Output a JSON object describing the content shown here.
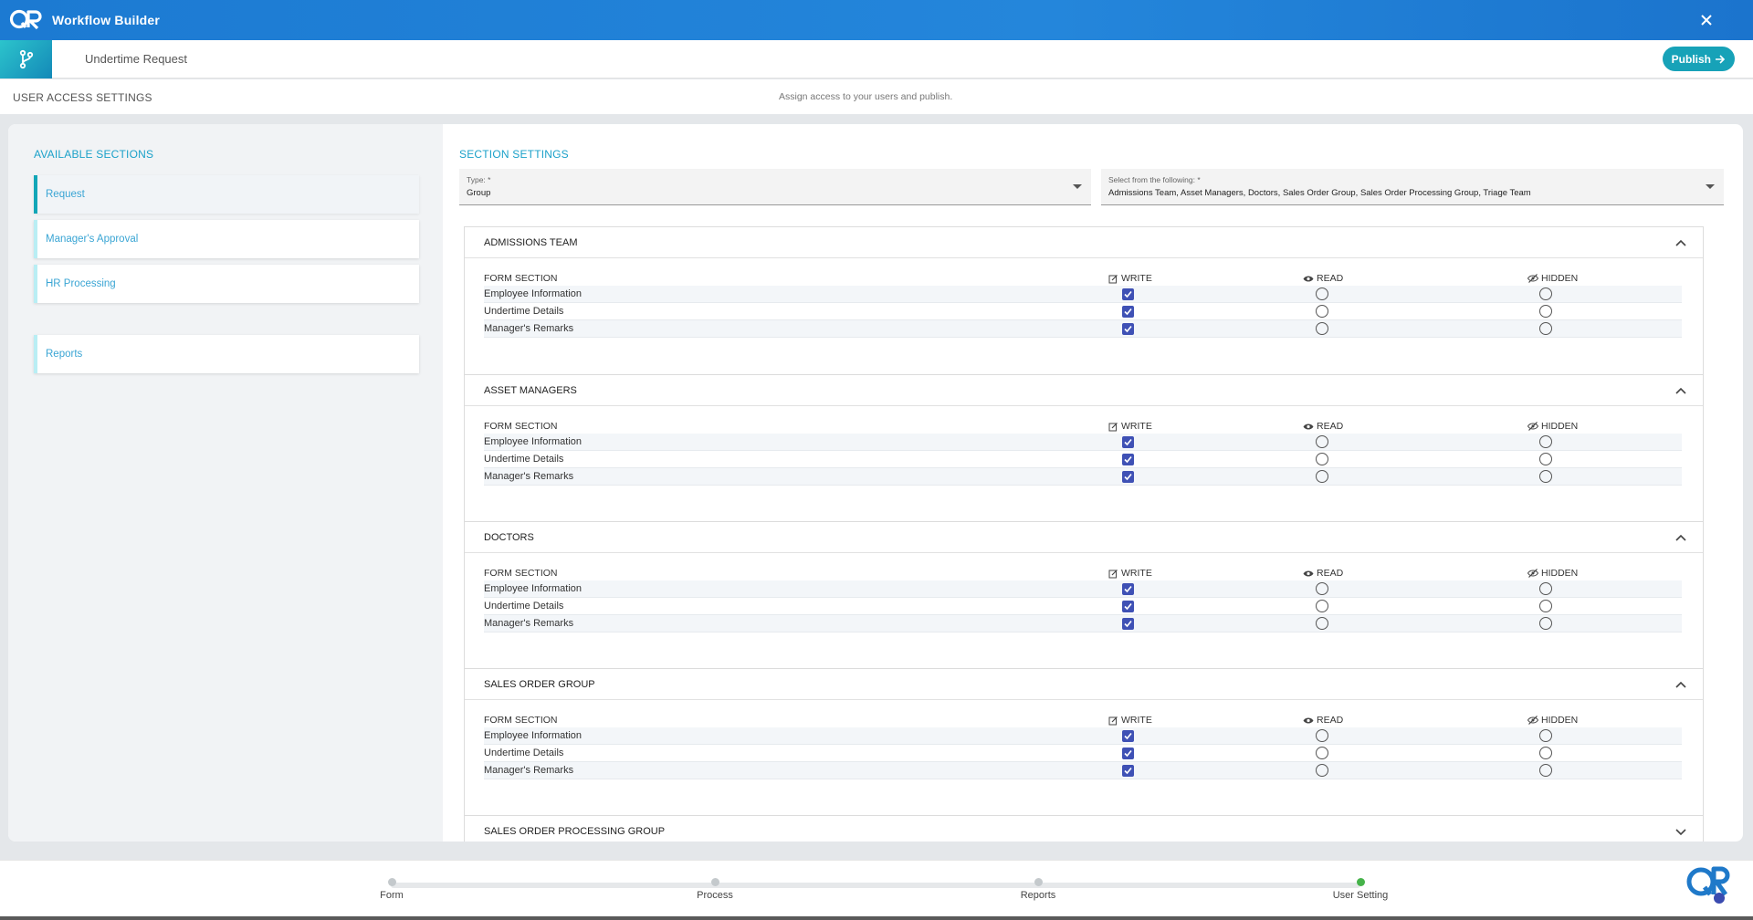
{
  "app": {
    "title": "Workflow Builder"
  },
  "header": {
    "doc_title": "Undertime Request",
    "publish_label": "Publish"
  },
  "access": {
    "title": "USER ACCESS SETTINGS",
    "description": "Assign access to your users and publish."
  },
  "available_sections": {
    "title": "AVAILABLE SECTIONS",
    "items": [
      {
        "label": "Request",
        "active": true
      },
      {
        "label": "Manager's Approval",
        "active": false
      },
      {
        "label": "HR Processing",
        "active": false
      },
      {
        "label": "Reports",
        "active": false
      }
    ]
  },
  "section_settings": {
    "title": "SECTION SETTINGS",
    "type": {
      "label": "Type: *",
      "value": "Group"
    },
    "select": {
      "label": "Select from the following: *",
      "value": "Admissions Team, Asset Managers, Doctors, Sales Order Group, Sales Order Processing Group, Triage Team"
    },
    "columns": {
      "form_section": "FORM SECTION",
      "write": "WRITE",
      "read": "READ",
      "hidden": "HIDDEN"
    },
    "groups": [
      {
        "name": "ADMISSIONS TEAM",
        "expanded": true,
        "rows": [
          "Employee Information",
          "Undertime Details",
          "Manager's Remarks"
        ]
      },
      {
        "name": "ASSET MANAGERS",
        "expanded": true,
        "rows": [
          "Employee Information",
          "Undertime Details",
          "Manager's Remarks"
        ]
      },
      {
        "name": "DOCTORS",
        "expanded": true,
        "rows": [
          "Employee Information",
          "Undertime Details",
          "Manager's Remarks"
        ]
      },
      {
        "name": "SALES ORDER GROUP",
        "expanded": true,
        "rows": [
          "Employee Information",
          "Undertime Details",
          "Manager's Remarks"
        ]
      },
      {
        "name": "SALES ORDER PROCESSING GROUP",
        "expanded": false,
        "rows": []
      }
    ]
  },
  "steps": [
    {
      "label": "Form",
      "done": false
    },
    {
      "label": "Process",
      "done": false
    },
    {
      "label": "Reports",
      "done": false
    },
    {
      "label": "User Setting",
      "done": true
    }
  ],
  "colors": {
    "accent": "#1ba1c9",
    "titlebar": "#1c7ad2",
    "checkbox": "#3f51b5",
    "publish": "#17a2b8"
  }
}
